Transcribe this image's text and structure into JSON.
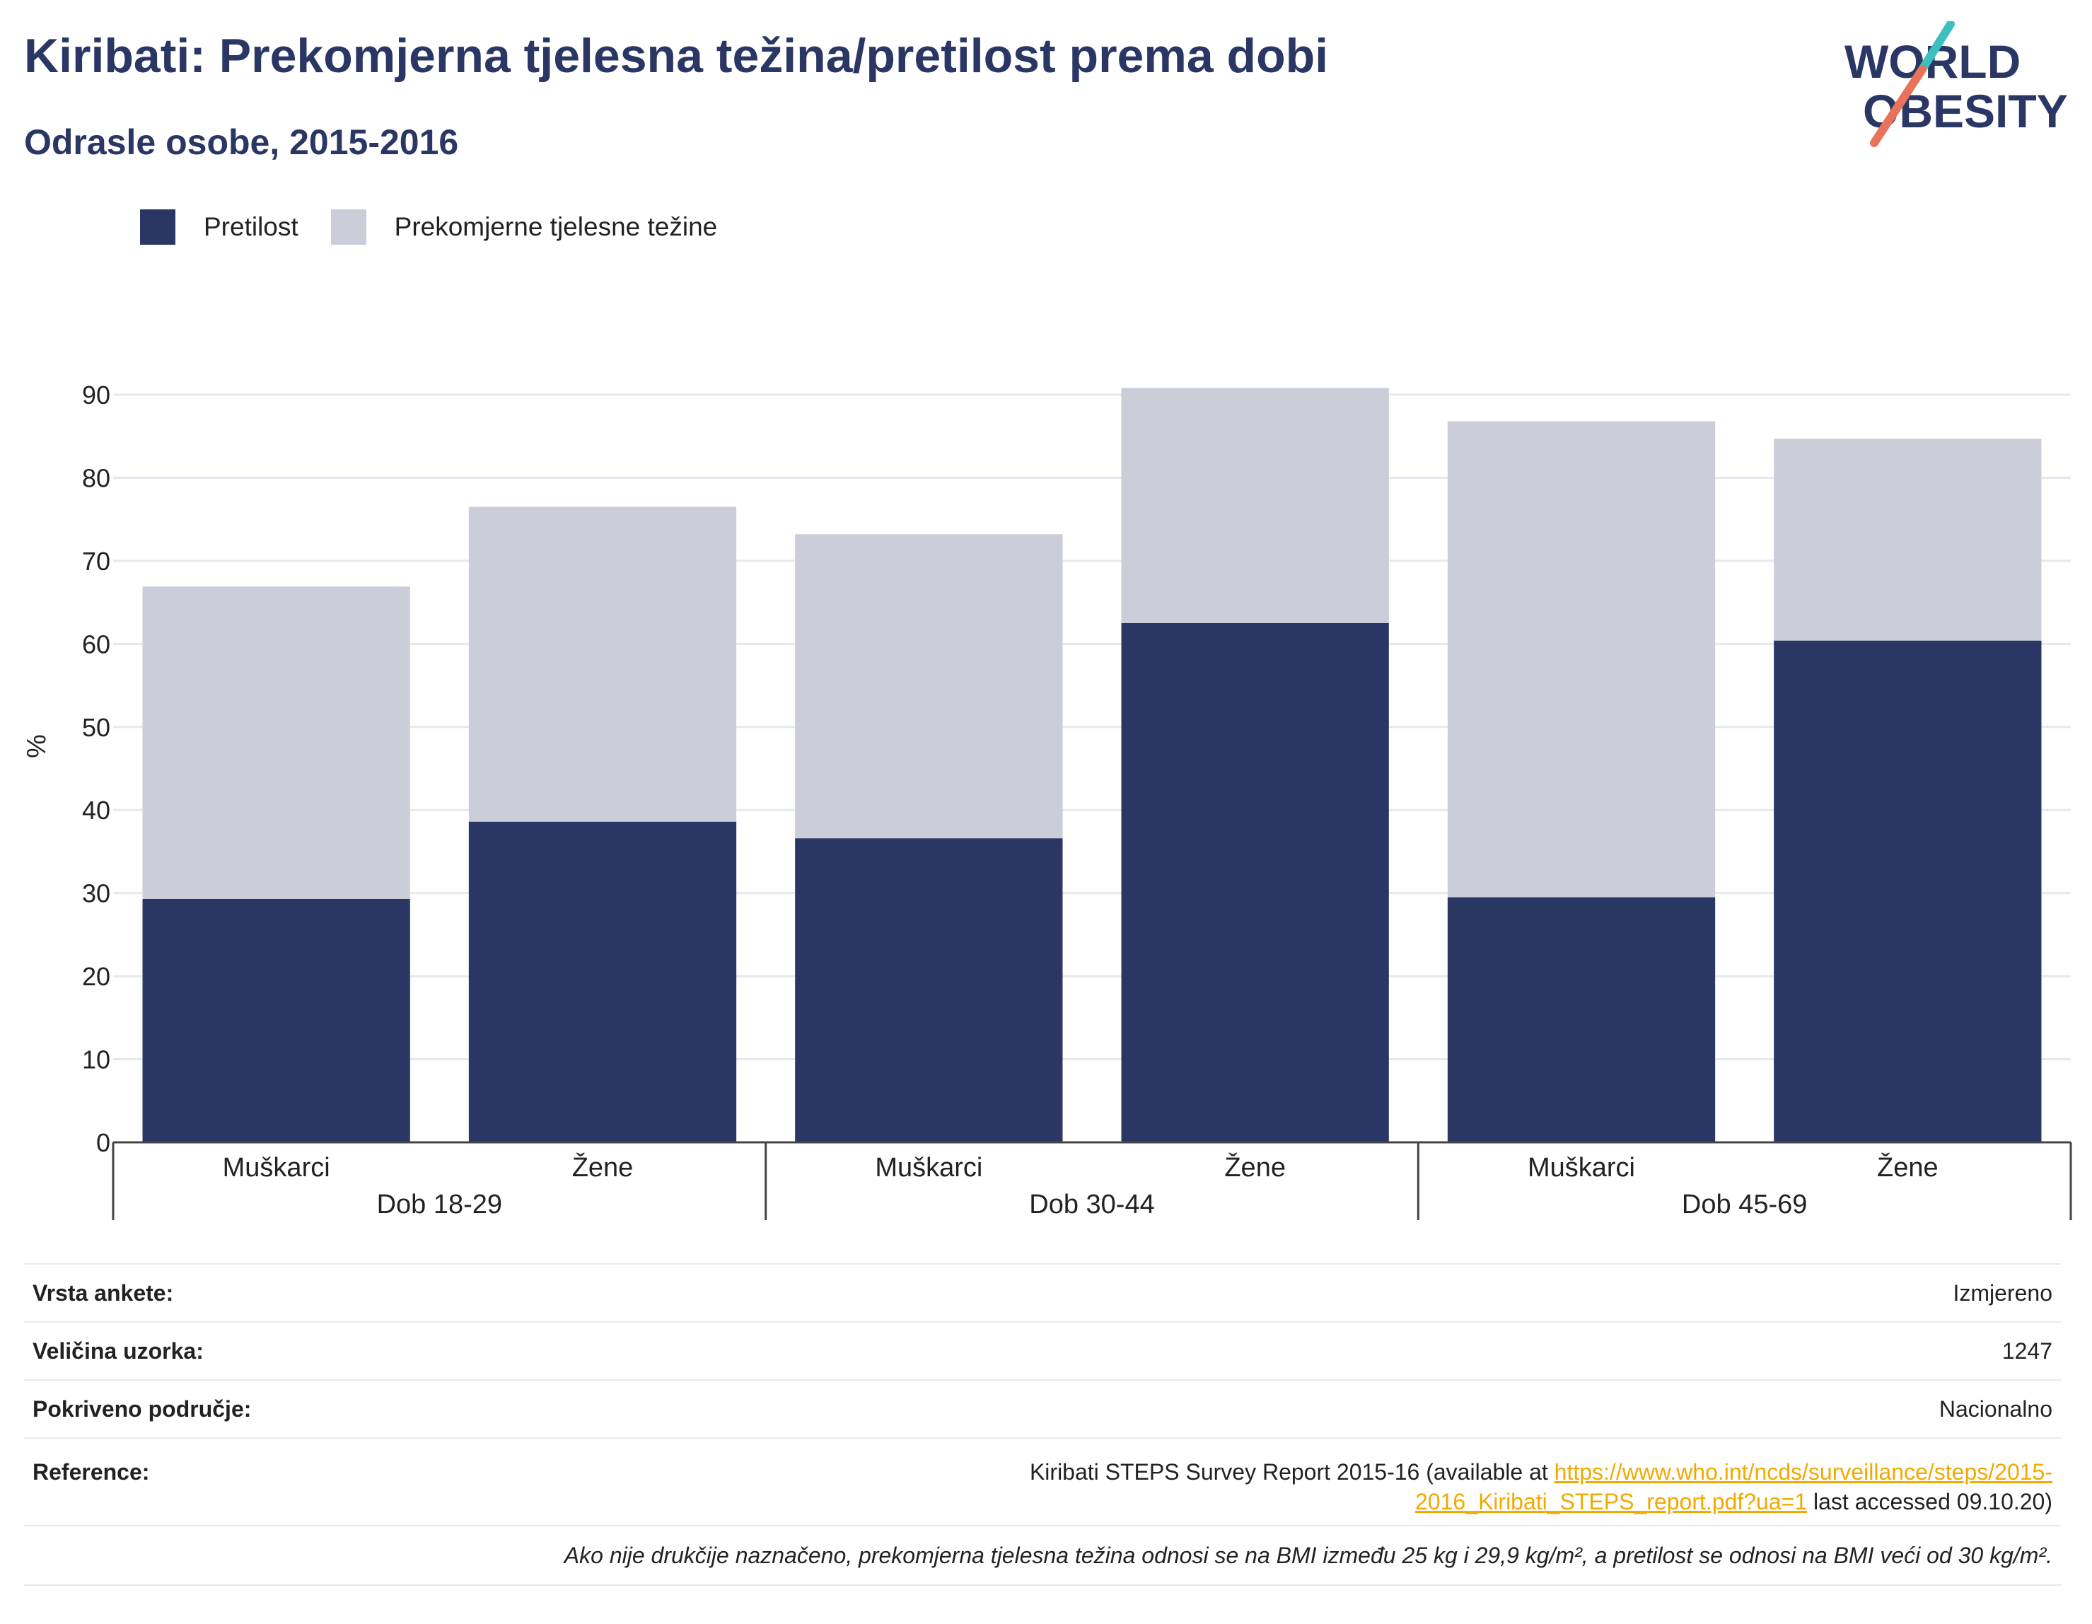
{
  "title": "Kiribati: Prekomjerna tjelesna težina/pretilost prema dobi",
  "subtitle": "Odrasle osobe, 2015-2016",
  "logo": {
    "line1": "WORLD",
    "line2": "OBESITY"
  },
  "legend": {
    "obesity": "Pretilost",
    "overweight": "Prekomjerne tjelesne težine"
  },
  "colors": {
    "obesity": "#2a3663",
    "overweight": "#cbcdd9",
    "accent_teal": "#3cbfbf",
    "accent_coral": "#e8735a",
    "link": "#f2a900"
  },
  "chart_data": {
    "type": "bar",
    "stacked": true,
    "ylabel": "%",
    "ylim": [
      0,
      90
    ],
    "yticks": [
      0,
      10,
      20,
      30,
      40,
      50,
      60,
      70,
      80,
      90
    ],
    "grid": true,
    "legend_position": "top-left",
    "categories": [
      "Muškarci",
      "Žene",
      "Muškarci",
      "Žene",
      "Muškarci",
      "Žene"
    ],
    "groups": [
      {
        "label": "Dob 18-29",
        "categories": [
          "Muškarci",
          "Žene"
        ]
      },
      {
        "label": "Dob 30-44",
        "categories": [
          "Muškarci",
          "Žene"
        ]
      },
      {
        "label": "Dob 45-69",
        "categories": [
          "Muškarci",
          "Žene"
        ]
      }
    ],
    "series": [
      {
        "name": "Pretilost",
        "values": [
          29.3,
          38.6,
          36.6,
          62.5,
          29.5,
          60.4
        ]
      },
      {
        "name": "Prekomjerne tjelesne težine",
        "values": [
          37.6,
          37.9,
          36.6,
          28.3,
          57.3,
          24.3
        ]
      }
    ]
  },
  "info": {
    "survey_type_label": "Vrsta ankete:",
    "survey_type_value": "Izmjereno",
    "sample_size_label": "Veličina uzorka:",
    "sample_size_value": "1247",
    "coverage_label": "Pokriveno područje:",
    "coverage_value": "Nacionalno",
    "reference_label": "Reference:",
    "reference_text_pre": "Kiribati STEPS Survey Report 2015-16 (available at ",
    "reference_link_part1": "https://www.who.int/ncds/surveillance/steps/2015-",
    "reference_link_part2": "2016_Kiribati_STEPS_report.pdf?ua=1",
    "reference_text_post": " last accessed 09.10.20)",
    "note": "Ako nije drukčije naznačeno, prekomjerna tjelesna težina odnosi se na BMI između 25 kg i 29,9 kg/m², a pretilost se odnosi na BMI veći od 30 kg/m²."
  }
}
